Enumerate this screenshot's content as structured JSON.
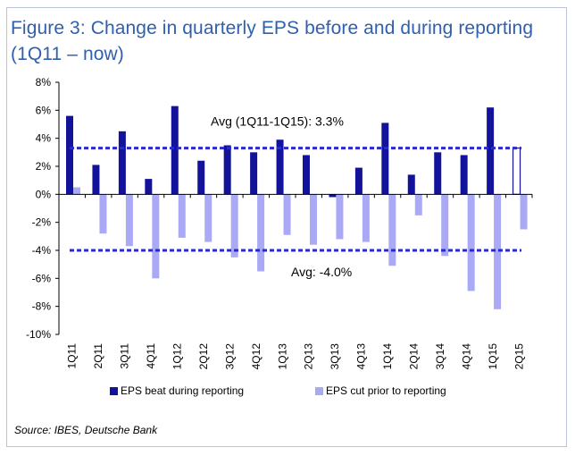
{
  "title": "Figure 3: Change in quarterly EPS before and during reporting (1Q11 – now)",
  "source": "Source: IBES, Deutsche Bank",
  "colors": {
    "beat": "#12129a",
    "cut": "#a9a9f5",
    "avg_line": "#2a2ac8",
    "title": "#2f5fae"
  },
  "chart_data": {
    "type": "bar",
    "categories": [
      "1Q11",
      "2Q11",
      "3Q11",
      "4Q11",
      "1Q12",
      "2Q12",
      "3Q12",
      "4Q12",
      "1Q13",
      "2Q13",
      "3Q13",
      "4Q13",
      "1Q14",
      "2Q14",
      "3Q14",
      "4Q14",
      "1Q15",
      "2Q15"
    ],
    "series": [
      {
        "name": "EPS beat during reporting",
        "values": [
          5.6,
          2.1,
          4.5,
          1.1,
          6.3,
          2.4,
          3.5,
          3.0,
          3.9,
          2.8,
          -0.2,
          1.9,
          5.1,
          1.4,
          3.0,
          2.8,
          6.2,
          3.3
        ],
        "outlined_last": true
      },
      {
        "name": "EPS cut prior to reporting",
        "values": [
          0.5,
          -2.8,
          -3.7,
          -6.0,
          -3.1,
          -3.4,
          -4.5,
          -5.5,
          -2.9,
          -3.6,
          -3.2,
          -3.4,
          -5.1,
          -1.5,
          -4.4,
          -6.9,
          -8.2,
          -2.5
        ]
      }
    ],
    "ylim": [
      -10,
      8
    ],
    "yticks": [
      "-10%",
      "-8%",
      "-6%",
      "-4%",
      "-2%",
      "0%",
      "2%",
      "4%",
      "6%",
      "8%"
    ],
    "ytick_values": [
      -10,
      -8,
      -6,
      -4,
      -2,
      0,
      2,
      4,
      6,
      8
    ],
    "reference_lines": [
      {
        "value": 3.3,
        "label": "Avg (1Q11-1Q15): 3.3%"
      },
      {
        "value": -4.0,
        "label": "Avg: -4.0%"
      }
    ],
    "legend_position": "bottom",
    "grid": false
  }
}
